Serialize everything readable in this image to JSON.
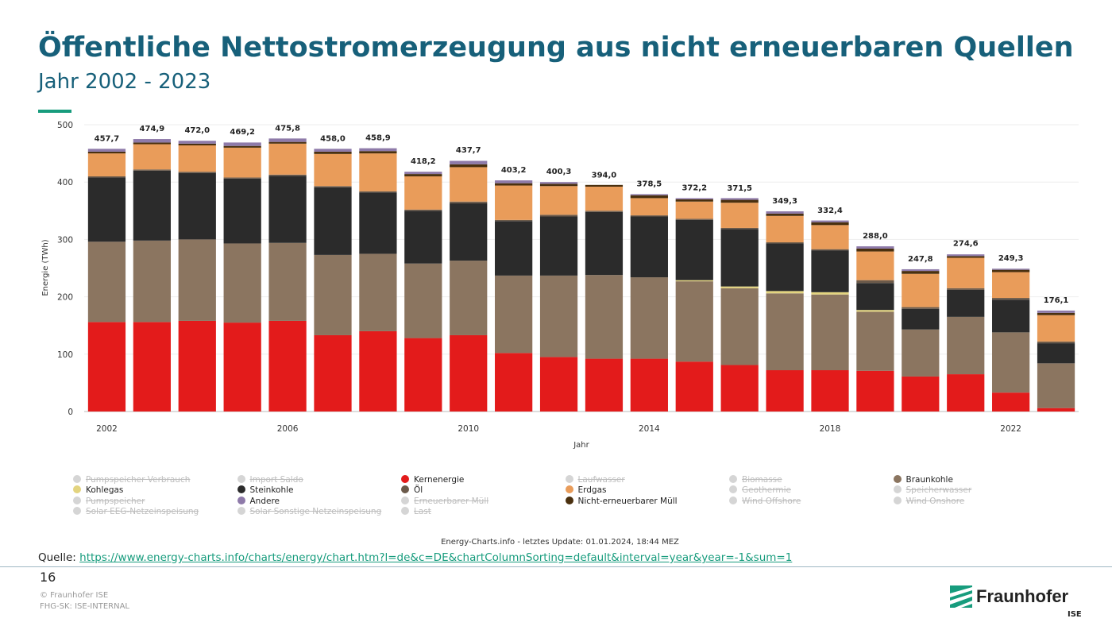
{
  "header": {
    "title": "Öffentliche Nettostromerzeugung aus nicht erneuerbaren Quellen",
    "subtitle": "Jahr 2002 - 2023"
  },
  "chart_data": {
    "type": "bar",
    "stacked": true,
    "ylabel": "Energie (TWh)",
    "xlabel": "Jahr",
    "ylim": [
      0,
      500
    ],
    "yticks": [
      0,
      100,
      200,
      300,
      400,
      500
    ],
    "categories": [
      "2002",
      "2003",
      "2004",
      "2005",
      "2006",
      "2007",
      "2008",
      "2009",
      "2010",
      "2011",
      "2012",
      "2013",
      "2014",
      "2015",
      "2016",
      "2017",
      "2018",
      "2019",
      "2020",
      "2021",
      "2022",
      "2023"
    ],
    "xtick_labels": [
      "2002",
      "2006",
      "2010",
      "2014",
      "2018",
      "2022"
    ],
    "totals": [
      457.7,
      474.9,
      472.0,
      469.2,
      475.8,
      458.0,
      458.9,
      418.2,
      437.7,
      403.2,
      400.3,
      394.0,
      378.5,
      372.2,
      371.5,
      349.3,
      332.4,
      288.0,
      247.8,
      274.6,
      249.3,
      176.1
    ],
    "total_labels": [
      "457,7",
      "474,9",
      "472,0",
      "469,2",
      "475,8",
      "458,0",
      "458,9",
      "418,2",
      "437,7",
      "403,2",
      "400,3",
      "394,0",
      "378,5",
      "372,2",
      "371,5",
      "349,3",
      "332,4",
      "288,0",
      "247,8",
      "274,6",
      "249,3",
      "176,1"
    ],
    "series": [
      {
        "name": "Kernenergie",
        "color": "#e31b1b",
        "values": [
          156,
          156,
          158,
          155,
          158,
          133,
          140,
          128,
          133,
          102,
          95,
          92,
          92,
          87,
          81,
          72,
          72,
          71,
          61,
          65,
          33,
          6
        ]
      },
      {
        "name": "Braunkohle",
        "color": "#8b7560",
        "values": [
          140,
          142,
          142,
          138,
          136,
          140,
          135,
          130,
          130,
          135,
          142,
          146,
          142,
          140,
          134,
          134,
          132,
          103,
          82,
          100,
          105,
          78
        ]
      },
      {
        "name": "Kohlegas",
        "color": "#e3d47f",
        "values": [
          0,
          0,
          0,
          0,
          0,
          0,
          0,
          0,
          0,
          0,
          0,
          0,
          0,
          2,
          3,
          4,
          4,
          3,
          0,
          0,
          0,
          0
        ]
      },
      {
        "name": "Steinkohle",
        "color": "#2b2b2b",
        "values": [
          112,
          122,
          116,
          113,
          117,
          118,
          107,
          92,
          100,
          95,
          103,
          110,
          106,
          105,
          100,
          83,
          73,
          47,
          36,
          47,
          57,
          35
        ]
      },
      {
        "name": "Öl",
        "color": "#6b5a4a",
        "values": [
          2,
          2,
          2,
          2,
          2,
          2,
          2,
          2,
          3,
          2,
          3,
          2,
          2,
          2,
          2,
          2,
          2,
          5,
          3,
          3,
          3,
          3
        ]
      },
      {
        "name": "Erdgas",
        "color": "#e99c5a",
        "values": [
          40,
          44,
          46,
          52,
          54,
          56,
          66,
          58,
          60,
          60,
          50,
          42,
          30,
          30,
          44,
          46,
          42,
          50,
          58,
          53,
          45,
          46
        ]
      },
      {
        "name": "Nicht-erneuerbarer Müll",
        "color": "#4a300f",
        "values": [
          3,
          3,
          3,
          3,
          3,
          4,
          4,
          4,
          5,
          4,
          4,
          3,
          5,
          4,
          5,
          4,
          5,
          5,
          5,
          3,
          4,
          4
        ]
      },
      {
        "name": "Andere",
        "color": "#8e7aa9",
        "values": [
          5,
          6,
          5,
          6,
          6,
          5,
          5,
          4,
          6,
          5,
          3,
          0,
          2,
          2,
          3,
          4,
          3,
          4,
          3,
          3,
          2,
          4
        ]
      }
    ],
    "legend": [
      {
        "label": "Pumpspeicher Verbrauch",
        "color": "#d5d5d5",
        "active": false
      },
      {
        "label": "Import Saldo",
        "color": "#d5d5d5",
        "active": false
      },
      {
        "label": "Kernenergie",
        "color": "#e31b1b",
        "active": true
      },
      {
        "label": "Laufwasser",
        "color": "#d5d5d5",
        "active": false
      },
      {
        "label": "Biomasse",
        "color": "#d5d5d5",
        "active": false
      },
      {
        "label": "Braunkohle",
        "color": "#8b7560",
        "active": true
      },
      {
        "label": "Kohlegas",
        "color": "#e3d47f",
        "active": true
      },
      {
        "label": "Steinkohle",
        "color": "#2b2b2b",
        "active": true
      },
      {
        "label": "Öl",
        "color": "#6b5a4a",
        "active": true
      },
      {
        "label": "Erdgas",
        "color": "#e99c5a",
        "active": true
      },
      {
        "label": "Geothermie",
        "color": "#d5d5d5",
        "active": false
      },
      {
        "label": "Speicherwasser",
        "color": "#d5d5d5",
        "active": false
      },
      {
        "label": "Pumpspeicher",
        "color": "#d5d5d5",
        "active": false
      },
      {
        "label": "Andere",
        "color": "#8e7aa9",
        "active": true
      },
      {
        "label": "Erneuerbarer Müll",
        "color": "#d5d5d5",
        "active": false
      },
      {
        "label": "Nicht-erneuerbarer Müll",
        "color": "#4a300f",
        "active": true
      },
      {
        "label": "Wind Offshore",
        "color": "#d5d5d5",
        "active": false
      },
      {
        "label": "Wind Onshore",
        "color": "#d5d5d5",
        "active": false
      },
      {
        "label": "Solar EEG-Netzeinspeisung",
        "color": "#d5d5d5",
        "active": false
      },
      {
        "label": "Solar Sonstige Netzeinspeisung",
        "color": "#d5d5d5",
        "active": false
      },
      {
        "label": "Last",
        "color": "#d5d5d5",
        "active": false
      }
    ]
  },
  "footer": {
    "credit": "Energy-Charts.info - letztes Update: 01.01.2024, 18:44 MEZ",
    "source_label": "Quelle:",
    "source_url": "https://www.energy-charts.info/charts/energy/chart.htm?l=de&c=DE&chartColumnSorting=default&interval=year&year=-1&sum=1",
    "page_number": "16",
    "copyright": "© Fraunhofer ISE",
    "classification": "FHG-SK: ISE-INTERNAL",
    "logo_name": "Fraunhofer",
    "logo_sub": "ISE"
  }
}
